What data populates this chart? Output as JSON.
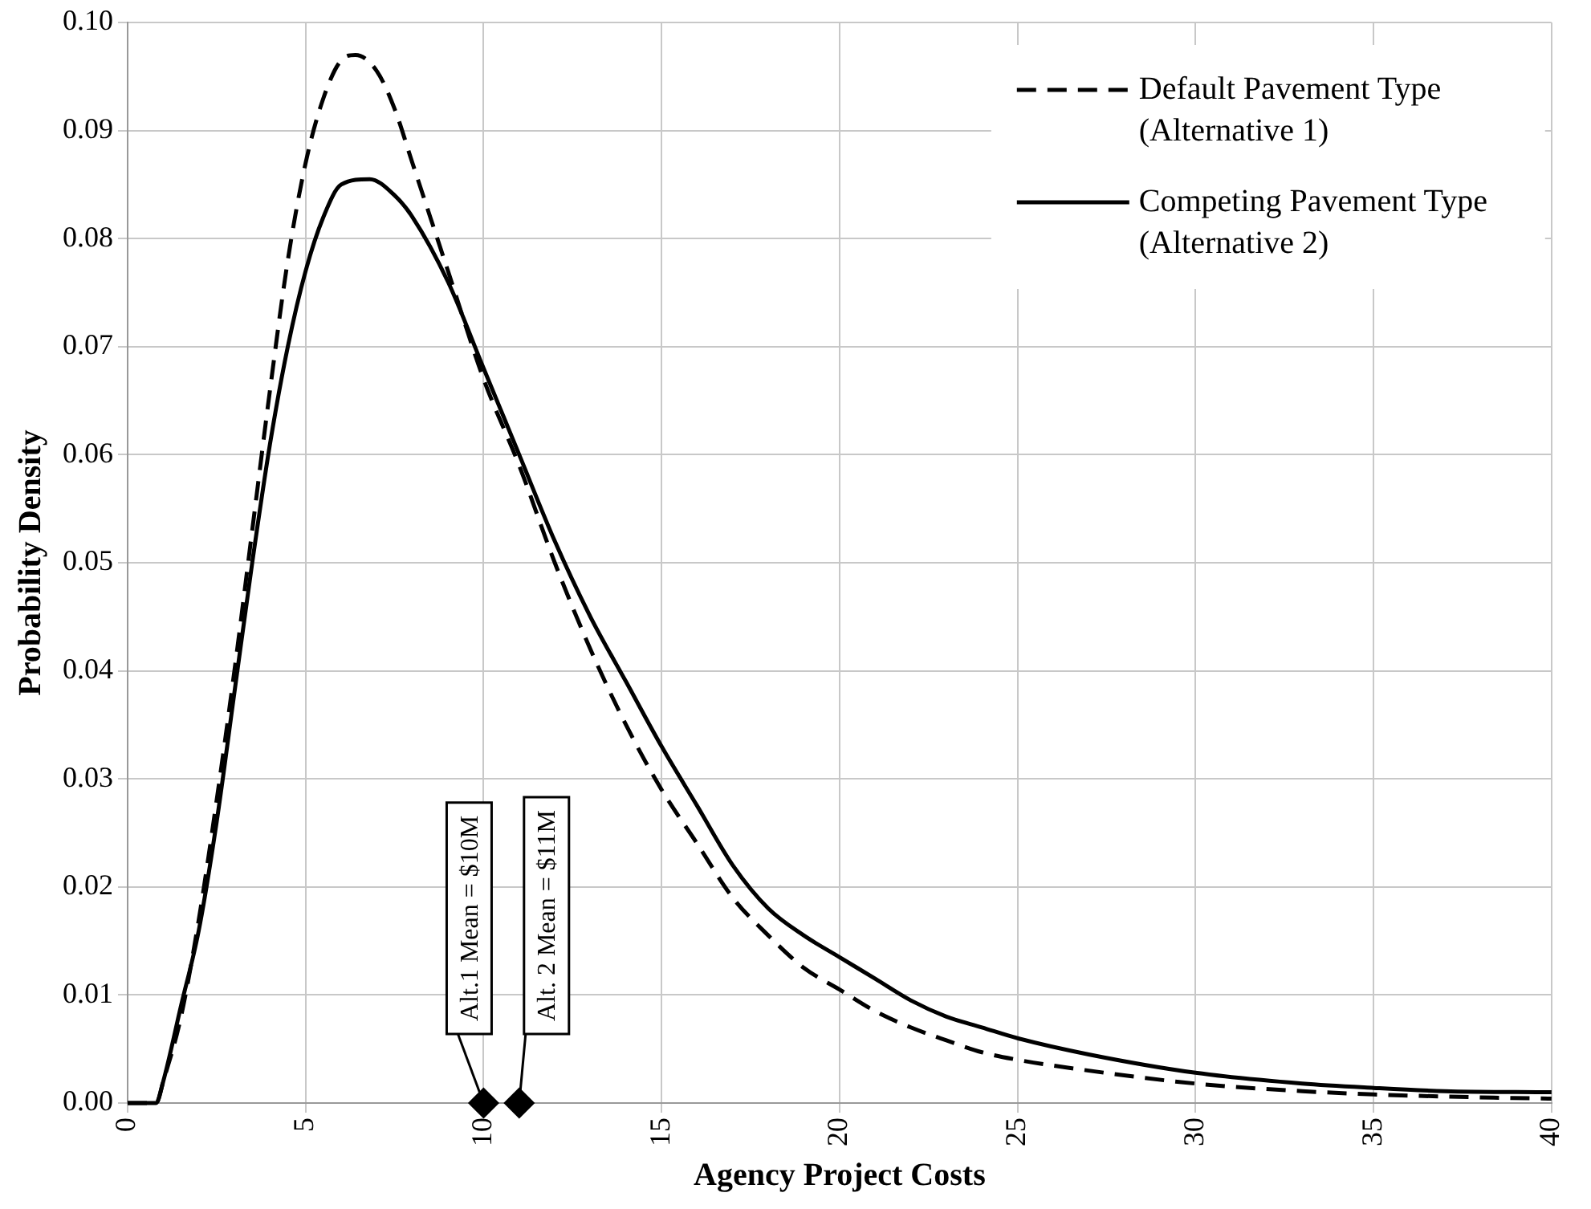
{
  "chart_data": {
    "type": "line",
    "xlabel": "Agency Project Costs",
    "ylabel": "Probability Density",
    "xlim": [
      0,
      40
    ],
    "xticks": [
      0,
      5,
      10,
      15,
      20,
      25,
      30,
      35,
      40
    ],
    "ylim": [
      0,
      0.1
    ],
    "yticks": [
      {
        "value": 0,
        "label": "0.00"
      },
      {
        "value": 0.01,
        "label": "0.01"
      },
      {
        "value": 0.02,
        "label": "0.02"
      },
      {
        "value": 0.03,
        "label": "0.03"
      },
      {
        "value": 0.04,
        "label": "0.04"
      },
      {
        "value": 0.05,
        "label": "0.05"
      },
      {
        "value": 0.06,
        "label": "0.06"
      },
      {
        "value": 0.07,
        "label": "0.07"
      },
      {
        "value": 0.08,
        "label": "0.08"
      },
      {
        "value": 0.09,
        "label": "0.09"
      },
      {
        "value": 0.1,
        "label": "0.10"
      }
    ],
    "grid": true,
    "legend": "top right",
    "marker": "none",
    "series": [
      {
        "name": "Default Pavement Type (Alternative 1)",
        "color": "#000000",
        "line_style": "dashed",
        "x": [
          0,
          0.8,
          1,
          1.5,
          2,
          2.5,
          3,
          3.5,
          4,
          4.5,
          5,
          5.5,
          6,
          6.4,
          7,
          7.5,
          8,
          9,
          10,
          11,
          12,
          13,
          14,
          15,
          16,
          17,
          18,
          19,
          20,
          21,
          22,
          23,
          24,
          25,
          27,
          30,
          33,
          35,
          37,
          40
        ],
        "values": [
          0,
          0,
          0.002,
          0.008,
          0.017,
          0.028,
          0.04,
          0.053,
          0.066,
          0.078,
          0.087,
          0.093,
          0.0965,
          0.097,
          0.0955,
          0.092,
          0.087,
          0.077,
          0.067,
          0.059,
          0.05,
          0.042,
          0.035,
          0.029,
          0.024,
          0.019,
          0.0155,
          0.0125,
          0.0105,
          0.0085,
          0.007,
          0.0058,
          0.0047,
          0.004,
          0.003,
          0.0018,
          0.0011,
          0.0008,
          0.0006,
          0.0004
        ]
      },
      {
        "name": "Competing Pavement Type (Alternative 2)",
        "color": "#000000",
        "line_style": "solid",
        "x": [
          0,
          0.8,
          1,
          1.5,
          2,
          2.5,
          3,
          3.5,
          4,
          4.5,
          5,
          5.5,
          6,
          6.8,
          7.5,
          8,
          9,
          10,
          11,
          12,
          13,
          14,
          15,
          16,
          17,
          18,
          19,
          20,
          21,
          22,
          23,
          24,
          25,
          27,
          30,
          33,
          35,
          37,
          40
        ],
        "values": [
          0,
          0,
          0.002,
          0.009,
          0.016,
          0.026,
          0.038,
          0.05,
          0.061,
          0.07,
          0.077,
          0.082,
          0.085,
          0.0855,
          0.084,
          0.082,
          0.076,
          0.068,
          0.06,
          0.052,
          0.045,
          0.039,
          0.033,
          0.0275,
          0.022,
          0.018,
          0.0155,
          0.0135,
          0.0115,
          0.0095,
          0.008,
          0.007,
          0.006,
          0.0045,
          0.0028,
          0.0018,
          0.0014,
          0.0011,
          0.001
        ]
      },
      {
        "type": "scatter",
        "color": "#000000",
        "marker": "diamond",
        "x": [
          10,
          11
        ],
        "values": [
          0,
          0
        ]
      }
    ],
    "annotations": [
      {
        "text": "Alt.1 Mean = $10M",
        "x": 10,
        "y": 0
      },
      {
        "text": "Alt. 2 Mean = $11M",
        "x": 11,
        "y": 0
      }
    ]
  }
}
